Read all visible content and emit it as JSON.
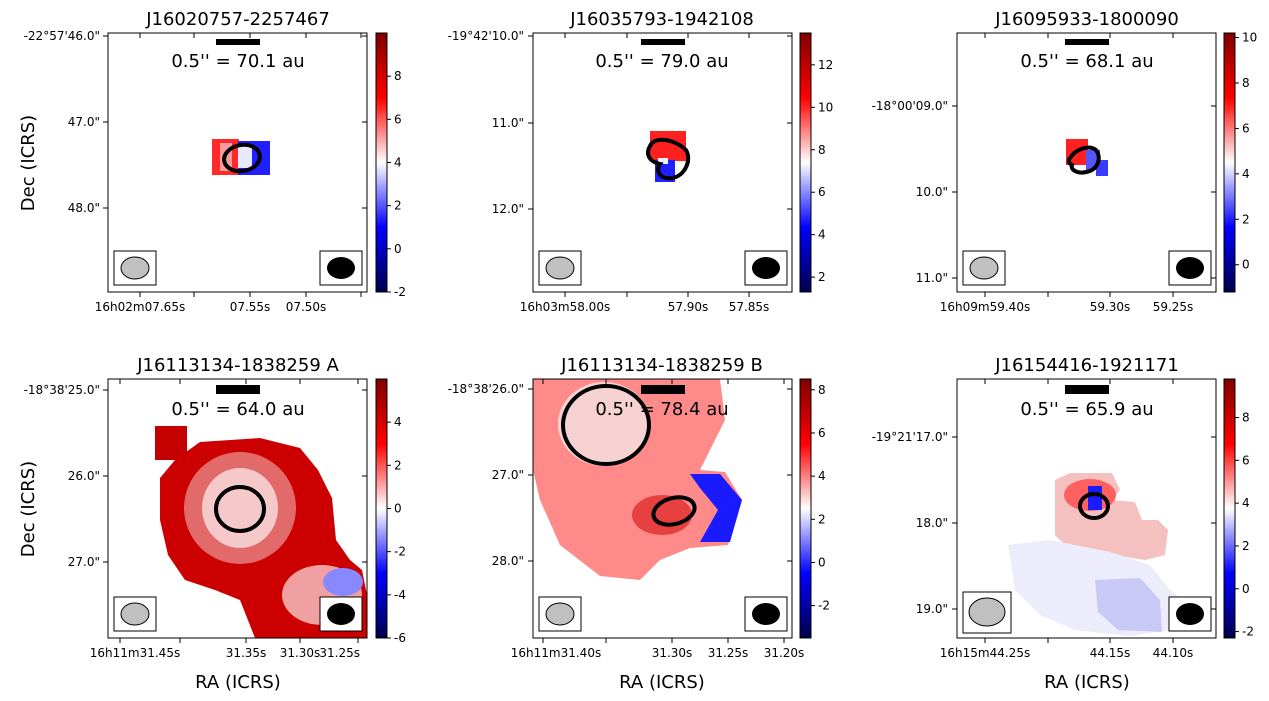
{
  "figure": {
    "ylabel": "Dec (ICRS)",
    "xlabel": "RA (ICRS)",
    "colormap": [
      "#00004c",
      "#0000ff",
      "#ffffff",
      "#ff0000",
      "#7f0000"
    ]
  },
  "chart_data": [
    {
      "type": "heatmap",
      "title": "J16020757-2257467",
      "scalebar_label": "0.5'' = 70.1 au",
      "colorbar": {
        "ticks": [
          "-2",
          "0",
          "2",
          "4",
          "6",
          "8"
        ],
        "range": [
          -2,
          10
        ]
      },
      "dec_ticks": [
        "-22°57'46.0\"",
        "47.0\"",
        "48.0\""
      ],
      "ra_ticks": [
        "16h02m07.65s",
        "07.55s",
        "07.50s"
      ]
    },
    {
      "type": "heatmap",
      "title": "J16035793-1942108",
      "scalebar_label": "0.5'' = 79.0 au",
      "colorbar": {
        "ticks": [
          "2",
          "4",
          "6",
          "8",
          "10",
          "12"
        ],
        "range": [
          1.3,
          13.5
        ]
      },
      "dec_ticks": [
        "-19°42'10.0\"",
        "11.0\"",
        "12.0\""
      ],
      "ra_ticks": [
        "16h03m58.00s",
        "57.90s",
        "57.85s"
      ]
    },
    {
      "type": "heatmap",
      "title": "J16095933-1800090",
      "scalebar_label": "0.5'' = 68.1 au",
      "colorbar": {
        "ticks": [
          "0",
          "2",
          "4",
          "6",
          "8",
          "10"
        ],
        "range": [
          -1.2,
          10.2
        ]
      },
      "dec_ticks": [
        "-18°00'09.0\"",
        "10.0\"",
        "11.0\""
      ],
      "ra_ticks": [
        "16h09m59.40s",
        "59.30s",
        "59.25s"
      ]
    },
    {
      "type": "heatmap",
      "title": "J16113134-1838259 A",
      "scalebar_label": "0.5'' = 64.0 au",
      "colorbar": {
        "ticks": [
          "-6",
          "-4",
          "-2",
          "0",
          "2",
          "4"
        ],
        "range": [
          -6,
          6
        ]
      },
      "dec_ticks": [
        "-18°38'25.0\"",
        "26.0\"",
        "27.0\""
      ],
      "ra_ticks": [
        "16h11m31.45s",
        "31.35s",
        "31.30s",
        "31.25s"
      ]
    },
    {
      "type": "heatmap",
      "title": "J16113134-1838259 B",
      "scalebar_label": "0.5'' = 78.4 au",
      "colorbar": {
        "ticks": [
          "-2",
          "0",
          "2",
          "4",
          "6",
          "8"
        ],
        "range": [
          -3.5,
          8.5
        ]
      },
      "dec_ticks": [
        "-18°38'26.0\"",
        "27.0\"",
        "28.0\""
      ],
      "ra_ticks": [
        "16h11m31.40s",
        "31.30s",
        "31.25s",
        "31.20s"
      ]
    },
    {
      "type": "heatmap",
      "title": "J16154416-1921171",
      "scalebar_label": "0.5'' = 65.9 au",
      "colorbar": {
        "ticks": [
          "-2",
          "0",
          "2",
          "4",
          "6",
          "8"
        ],
        "range": [
          -2.3,
          9.8
        ]
      },
      "dec_ticks": [
        "-19°21'17.0\"",
        "18.0\"",
        "19.0\""
      ],
      "ra_ticks": [
        "16h15m44.25s",
        "44.15s",
        "44.10s"
      ]
    }
  ]
}
